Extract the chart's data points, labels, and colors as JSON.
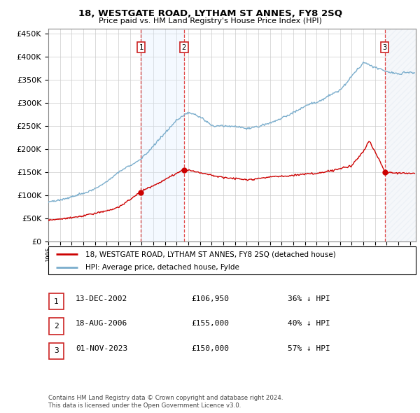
{
  "title": "18, WESTGATE ROAD, LYTHAM ST ANNES, FY8 2SQ",
  "subtitle": "Price paid vs. HM Land Registry's House Price Index (HPI)",
  "ylim": [
    0,
    460000
  ],
  "yticks": [
    0,
    50000,
    100000,
    150000,
    200000,
    250000,
    300000,
    350000,
    400000,
    450000
  ],
  "xlim_start": 1995.0,
  "xlim_end": 2026.5,
  "sale_dates": [
    2002.95,
    2006.63,
    2023.84
  ],
  "sale_prices": [
    106950,
    155000,
    150000
  ],
  "sale_labels": [
    "1",
    "2",
    "3"
  ],
  "sale_info": [
    {
      "label": "1",
      "date": "13-DEC-2002",
      "price": "£106,950",
      "pct": "36% ↓ HPI"
    },
    {
      "label": "2",
      "date": "18-AUG-2006",
      "price": "£155,000",
      "pct": "40% ↓ HPI"
    },
    {
      "label": "3",
      "date": "01-NOV-2023",
      "price": "£150,000",
      "pct": "57% ↓ HPI"
    }
  ],
  "legend_line1": "18, WESTGATE ROAD, LYTHAM ST ANNES, FY8 2SQ (detached house)",
  "legend_line2": "HPI: Average price, detached house, Fylde",
  "footer1": "Contains HM Land Registry data © Crown copyright and database right 2024.",
  "footer2": "This data is licensed under the Open Government Licence v3.0.",
  "hpi_color": "#7aadcc",
  "price_color": "#cc0000",
  "shade_color": "#ddeeff",
  "hatch_color": "#c8d8e8",
  "hpi_anchors_x": [
    1995,
    1996,
    1997,
    1998,
    1999,
    2000,
    2001,
    2002,
    2003,
    2004,
    2005,
    2006,
    2007,
    2008,
    2009,
    2010,
    2011,
    2012,
    2013,
    2014,
    2015,
    2016,
    2017,
    2018,
    2019,
    2020,
    2021,
    2022,
    2023,
    2024,
    2025,
    2026
  ],
  "hpi_anchors_y": [
    86000,
    90000,
    96000,
    103000,
    112000,
    128000,
    148000,
    163000,
    180000,
    205000,
    233000,
    258000,
    278000,
    268000,
    248000,
    250000,
    248000,
    245000,
    250000,
    258000,
    268000,
    278000,
    292000,
    300000,
    312000,
    325000,
    355000,
    385000,
    375000,
    368000,
    362000,
    365000
  ],
  "prop_anchors_x": [
    1995,
    1997,
    1999,
    2001,
    2002.95,
    2006.63,
    2008,
    2010,
    2012,
    2014,
    2016,
    2018,
    2019,
    2020,
    2021,
    2022,
    2022.5,
    2023.5,
    2023.84,
    2025
  ],
  "prop_anchors_y": [
    46000,
    52000,
    60000,
    72000,
    106950,
    155000,
    148000,
    138000,
    135000,
    140000,
    145000,
    148000,
    153000,
    158000,
    165000,
    195000,
    218000,
    170000,
    150000,
    148000
  ]
}
